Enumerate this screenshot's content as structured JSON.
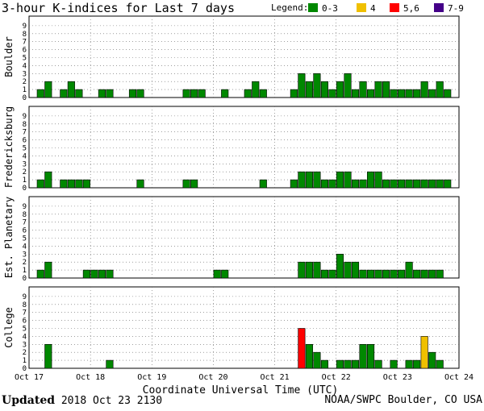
{
  "chart_data": {
    "type": "bar",
    "title": "3-hour K-indices for Last 7 days",
    "xlabel": "Coordinate Universal Time (UTC)",
    "ylim": [
      0,
      9
    ],
    "yticks": [
      "0",
      "1",
      "2",
      "3",
      "4",
      "5",
      "6",
      "7",
      "8",
      "9"
    ],
    "x_tick_labels": [
      "Oct 17",
      "Oct 18",
      "Oct 19",
      "Oct 20",
      "Oct 21",
      "Oct 22",
      "Oct 23",
      "Oct 24"
    ],
    "grid": true,
    "legend": {
      "title": "Legend:",
      "placement": "top-right",
      "entries": [
        {
          "label": "0-3",
          "color": "#008800"
        },
        {
          "label": "4",
          "color": "#f0c000"
        },
        {
          "label": "5,6",
          "color": "#ff0000"
        },
        {
          "label": "7-9",
          "color": "#440088"
        }
      ]
    },
    "panels": [
      {
        "name": "Boulder",
        "values": [
          0,
          1,
          2,
          0,
          1,
          2,
          1,
          0,
          0,
          1,
          1,
          0,
          0,
          1,
          1,
          0,
          0,
          0,
          0,
          0,
          1,
          1,
          1,
          0,
          0,
          1,
          0,
          0,
          1,
          2,
          1,
          0,
          0,
          0,
          1,
          3,
          2,
          3,
          2,
          1,
          2,
          3,
          1,
          2,
          1,
          2,
          2,
          1,
          1,
          1,
          1,
          2,
          1,
          2,
          1,
          0
        ]
      },
      {
        "name": "Fredericksburg",
        "values": [
          0,
          1,
          2,
          0,
          1,
          1,
          1,
          1,
          0,
          0,
          0,
          0,
          0,
          0,
          1,
          0,
          0,
          0,
          0,
          0,
          1,
          1,
          0,
          0,
          0,
          0,
          0,
          0,
          0,
          0,
          1,
          0,
          0,
          0,
          1,
          2,
          2,
          2,
          1,
          1,
          2,
          2,
          1,
          1,
          2,
          2,
          1,
          1,
          1,
          1,
          1,
          1,
          1,
          1,
          1,
          0
        ]
      },
      {
        "name": "Est. Planetary",
        "values": [
          0,
          1,
          2,
          0,
          0,
          0,
          0,
          1,
          1,
          1,
          1,
          0,
          0,
          0,
          0,
          0,
          0,
          0,
          0,
          0,
          0,
          0,
          0,
          0,
          1,
          1,
          0,
          0,
          0,
          0,
          0,
          0,
          0,
          0,
          0,
          2,
          2,
          2,
          1,
          1,
          3,
          2,
          2,
          1,
          1,
          1,
          1,
          1,
          1,
          2,
          1,
          1,
          1,
          1,
          0,
          0
        ]
      },
      {
        "name": "College",
        "values": [
          0,
          0,
          3,
          0,
          0,
          0,
          0,
          0,
          0,
          0,
          1,
          0,
          0,
          0,
          0,
          0,
          0,
          0,
          0,
          0,
          0,
          0,
          0,
          0,
          0,
          0,
          0,
          0,
          0,
          0,
          0,
          0,
          0,
          0,
          0,
          5,
          3,
          2,
          1,
          0,
          1,
          1,
          1,
          3,
          3,
          1,
          0,
          1,
          0,
          1,
          1,
          4,
          2,
          1,
          0,
          0
        ]
      }
    ]
  },
  "footer": {
    "updated_label": "Updated",
    "updated_value": "2018 Oct 23 2130",
    "source": "NOAA/SWPC Boulder, CO USA"
  }
}
